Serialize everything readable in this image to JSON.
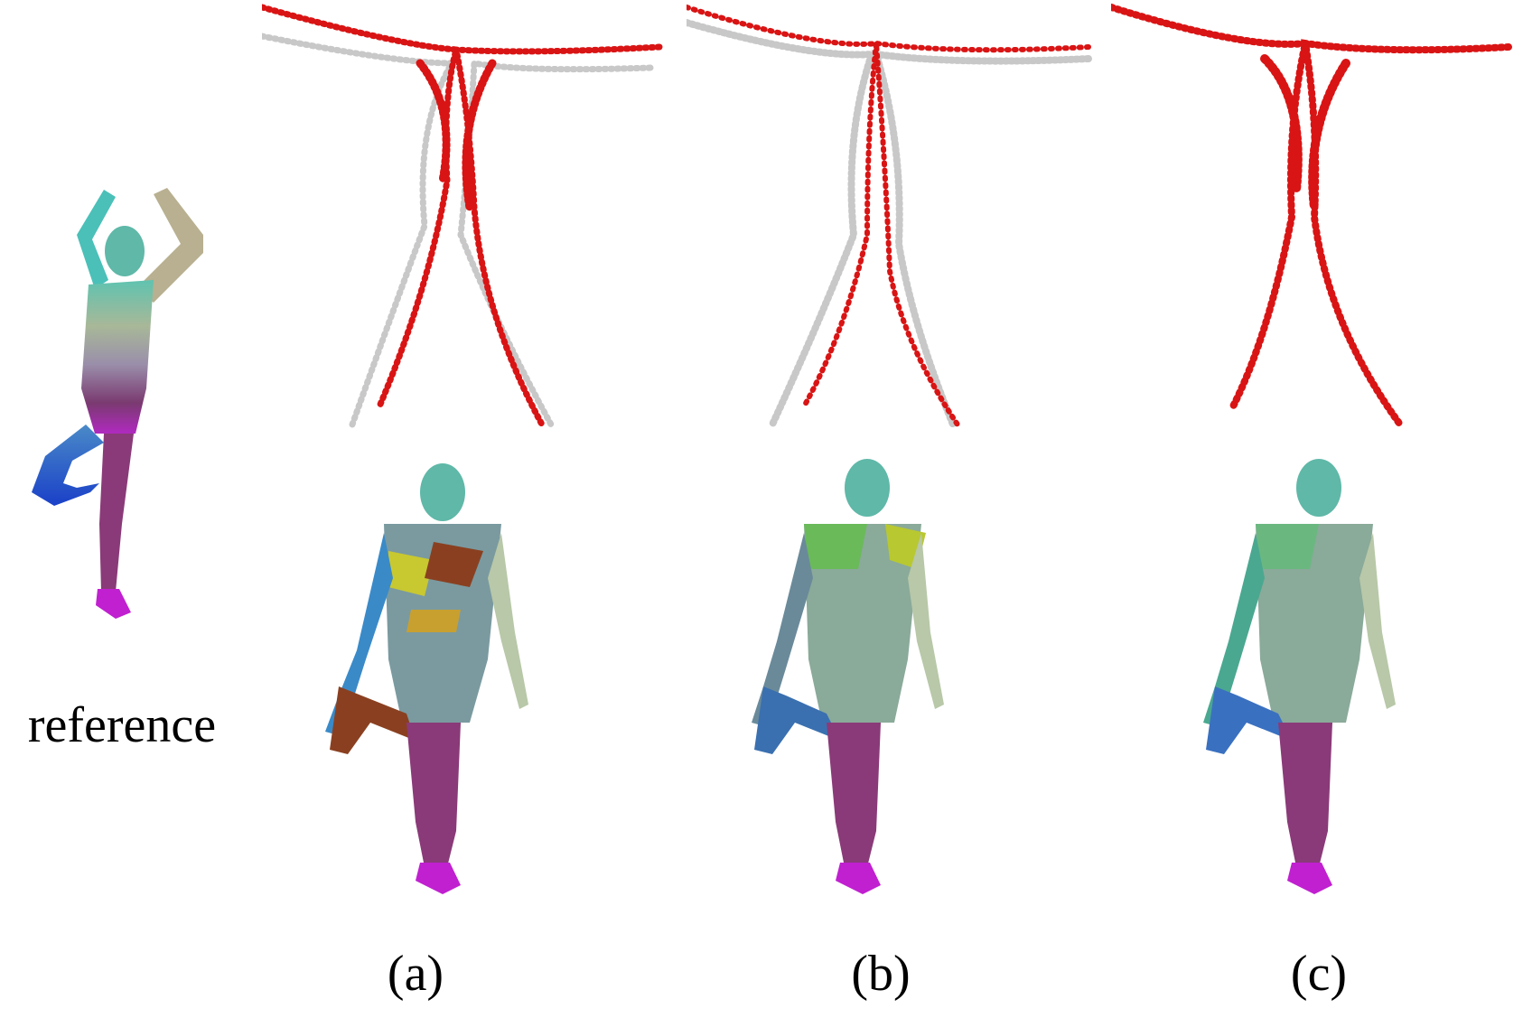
{
  "figure": {
    "reference_label": "reference",
    "columns": [
      {
        "label": "(a)",
        "mesh_quality": "noisy"
      },
      {
        "label": "(b)",
        "mesh_quality": "partial"
      },
      {
        "label": "(c)",
        "mesh_quality": "clean"
      }
    ]
  },
  "colors": {
    "point_red": "#d91414",
    "point_gray": "#c8c8c8",
    "body_teal": "#5fb8a8",
    "body_purple": "#8a4a7a",
    "body_blue": "#2a5ad0",
    "foot_magenta": "#c020d0"
  }
}
